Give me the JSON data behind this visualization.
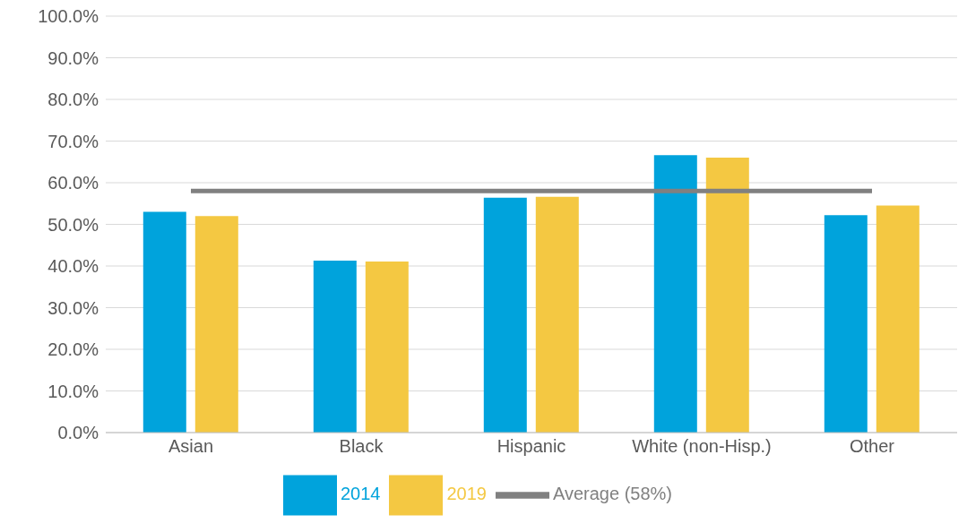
{
  "chart_data": {
    "type": "bar",
    "categories": [
      "Asian",
      "Black",
      "Hispanic",
      "White (non-Hisp.)",
      "Other"
    ],
    "series": [
      {
        "name": "2014",
        "color": "#00a3dc",
        "values": [
          53.0,
          41.3,
          56.4,
          66.6,
          52.2
        ]
      },
      {
        "name": "2019",
        "color": "#f4c842",
        "values": [
          52.0,
          41.1,
          56.6,
          66.0,
          54.5
        ]
      },
      {
        "name": "Average (58%)",
        "type": "line",
        "color": "#808080",
        "values": [
          58,
          58,
          58,
          58,
          58
        ]
      }
    ],
    "ylim": [
      0,
      100
    ],
    "yticks": [
      {
        "value": 0,
        "label": "0.0%"
      },
      {
        "value": 10,
        "label": "10.0%"
      },
      {
        "value": 20,
        "label": "20.0%"
      },
      {
        "value": 30,
        "label": "30.0%"
      },
      {
        "value": 40,
        "label": "40.0%"
      },
      {
        "value": 50,
        "label": "50.0%"
      },
      {
        "value": 60,
        "label": "60.0%"
      },
      {
        "value": 70,
        "label": "70.0%"
      },
      {
        "value": 80,
        "label": "80.0%"
      },
      {
        "value": 90,
        "label": "90.0%"
      },
      {
        "value": 100,
        "label": "100.0%"
      }
    ],
    "grid": "y",
    "legend": "bottom",
    "marker": "none"
  }
}
